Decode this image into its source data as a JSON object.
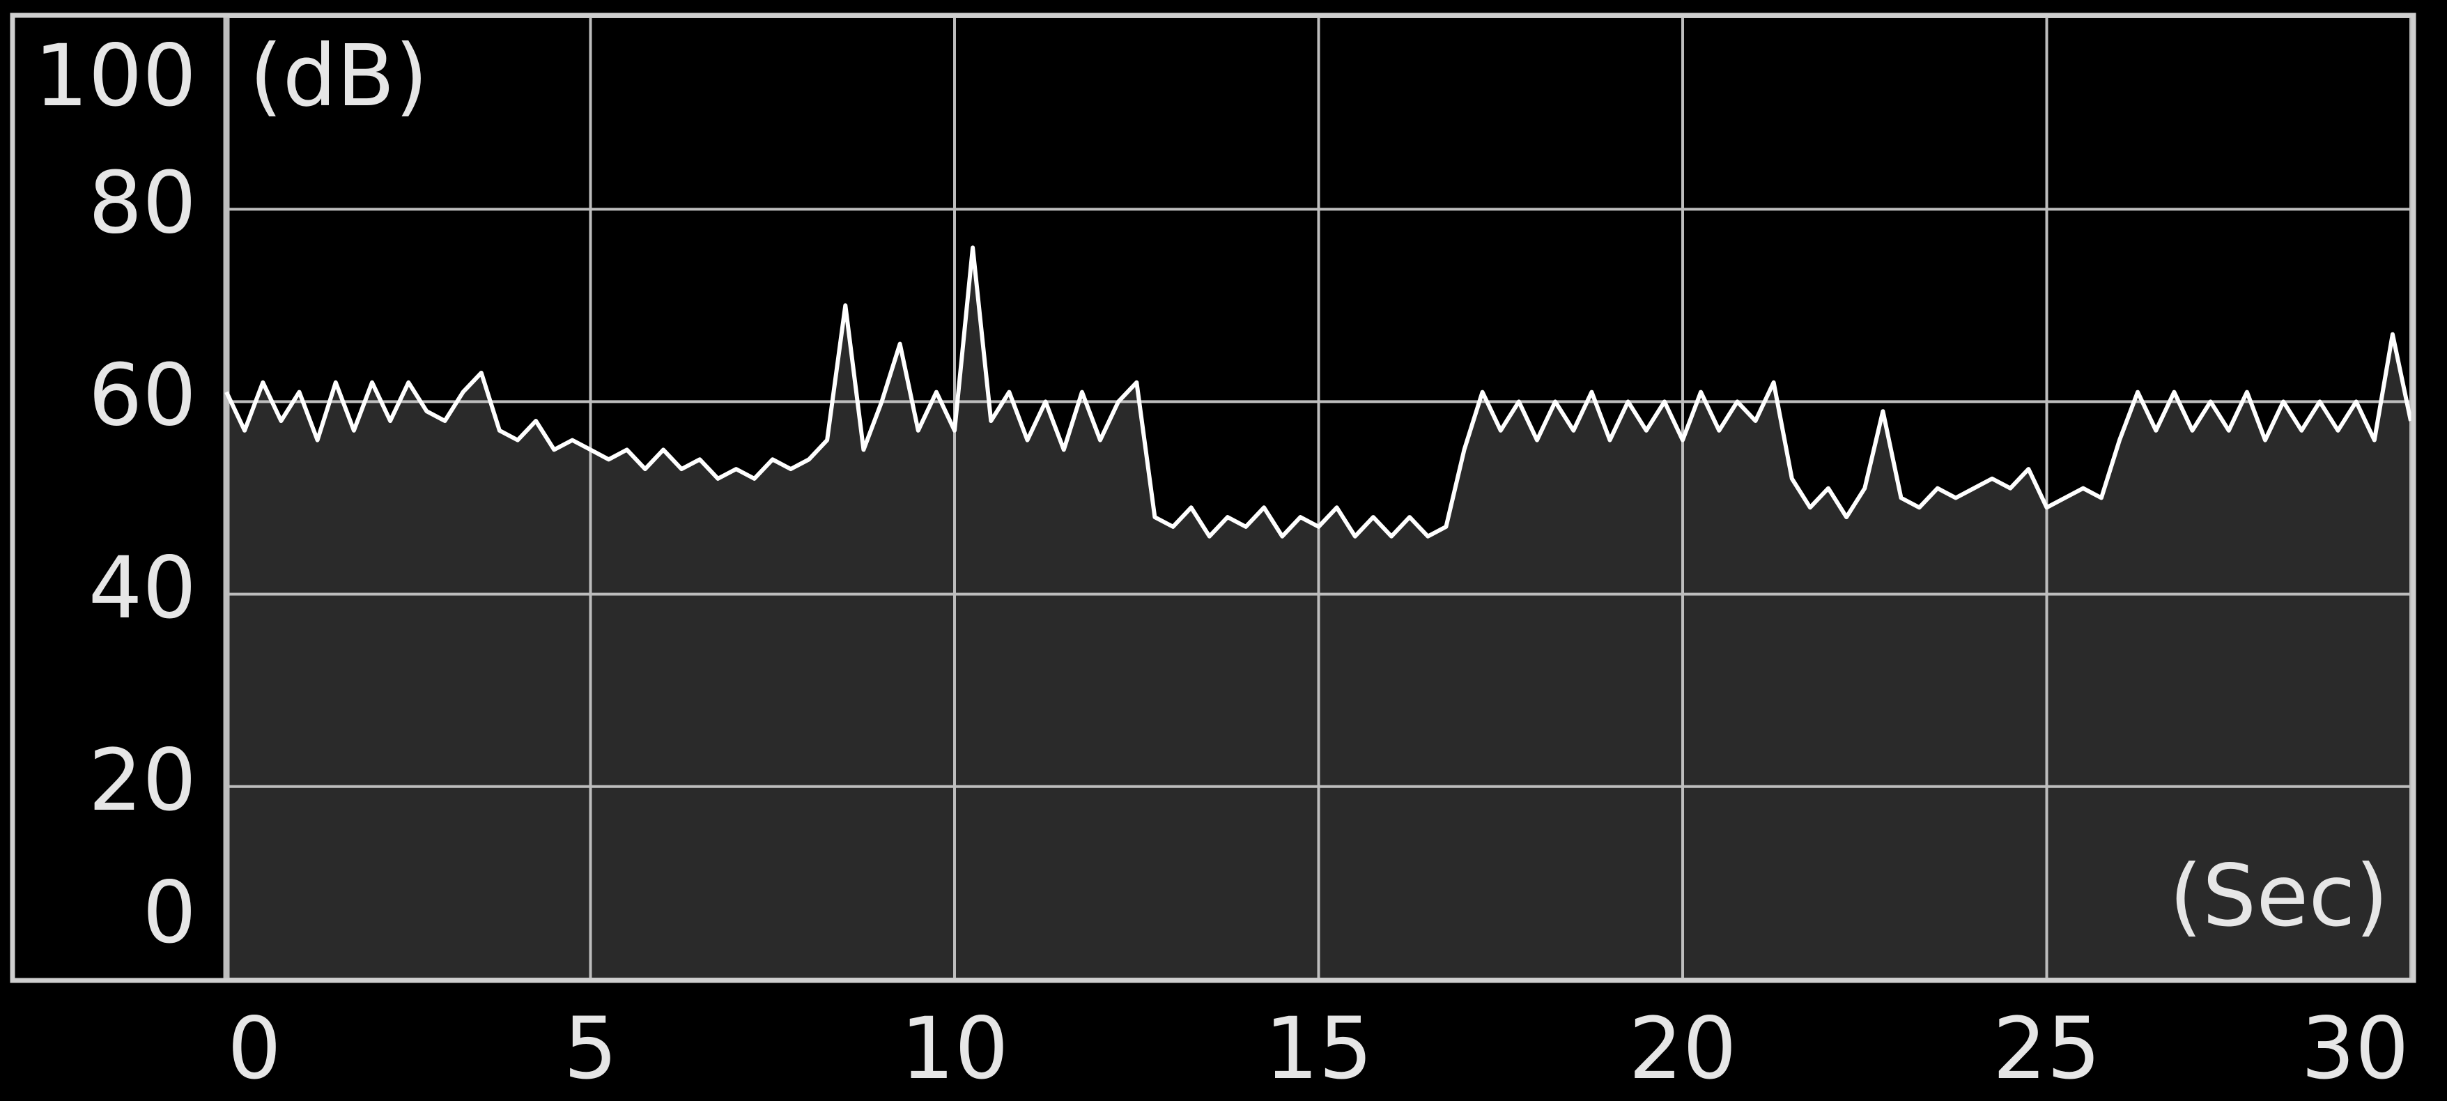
{
  "chart_data": {
    "type": "area",
    "y_label": "(dB)",
    "x_label": "(Sec)",
    "x": [
      0,
      0.25,
      0.5,
      0.75,
      1,
      1.25,
      1.5,
      1.75,
      2,
      2.25,
      2.5,
      2.75,
      3,
      3.25,
      3.5,
      3.75,
      4,
      4.25,
      4.5,
      4.75,
      5,
      5.25,
      5.5,
      5.75,
      6,
      6.25,
      6.5,
      6.75,
      7,
      7.25,
      7.5,
      7.75,
      8,
      8.25,
      8.5,
      8.75,
      9,
      9.25,
      9.5,
      9.75,
      10,
      10.25,
      10.5,
      10.75,
      11,
      11.25,
      11.5,
      11.75,
      12,
      12.25,
      12.5,
      12.75,
      13,
      13.25,
      13.5,
      13.75,
      14,
      14.25,
      14.5,
      14.75,
      15,
      15.25,
      15.5,
      15.75,
      16,
      16.25,
      16.5,
      16.75,
      17,
      17.25,
      17.5,
      17.75,
      18,
      18.25,
      18.5,
      18.75,
      19,
      19.25,
      19.5,
      19.75,
      20,
      20.25,
      20.5,
      20.75,
      21,
      21.25,
      21.5,
      21.75,
      22,
      22.25,
      22.5,
      22.75,
      23,
      23.25,
      23.5,
      23.75,
      24,
      24.25,
      24.5,
      24.75,
      25,
      25.25,
      25.5,
      25.75,
      26,
      26.25,
      26.5,
      26.75,
      27,
      27.25,
      27.5,
      27.75,
      28,
      28.25,
      28.5,
      28.75,
      29,
      29.25,
      29.5,
      29.75,
      30
    ],
    "series": [
      {
        "color": "#ffffff",
        "fill": "#2a2a2a",
        "values": [
          61,
          57,
          62,
          58,
          61,
          56,
          62,
          57,
          62,
          58,
          62,
          59,
          58,
          61,
          63,
          57,
          56,
          58,
          55,
          56,
          55,
          54,
          55,
          53,
          55,
          53,
          54,
          52,
          53,
          52,
          54,
          53,
          54,
          56,
          70,
          55,
          60,
          66,
          57,
          61,
          57,
          76,
          58,
          61,
          56,
          60,
          55,
          61,
          56,
          60,
          62,
          48,
          47,
          49,
          46,
          48,
          47,
          49,
          46,
          48,
          47,
          49,
          46,
          48,
          46,
          48,
          46,
          47,
          55,
          61,
          57,
          60,
          56,
          60,
          57,
          61,
          56,
          60,
          57,
          60,
          56,
          61,
          57,
          60,
          58,
          62,
          52,
          49,
          51,
          48,
          51,
          59,
          50,
          49,
          51,
          50,
          51,
          52,
          51,
          53,
          49,
          50,
          51,
          50,
          56,
          61,
          57,
          61,
          57,
          60,
          57,
          61,
          56,
          60,
          57,
          60,
          57,
          60,
          56,
          67,
          58
        ]
      }
    ],
    "xlim": [
      0,
      30
    ],
    "xticks": [
      0,
      5,
      10,
      15,
      20,
      25,
      30
    ],
    "ylim": [
      0,
      100
    ],
    "yticks": [
      0,
      20,
      40,
      60,
      80,
      100
    ],
    "grid": true,
    "background": "#000000",
    "grid_color": "#bdbdbd"
  }
}
